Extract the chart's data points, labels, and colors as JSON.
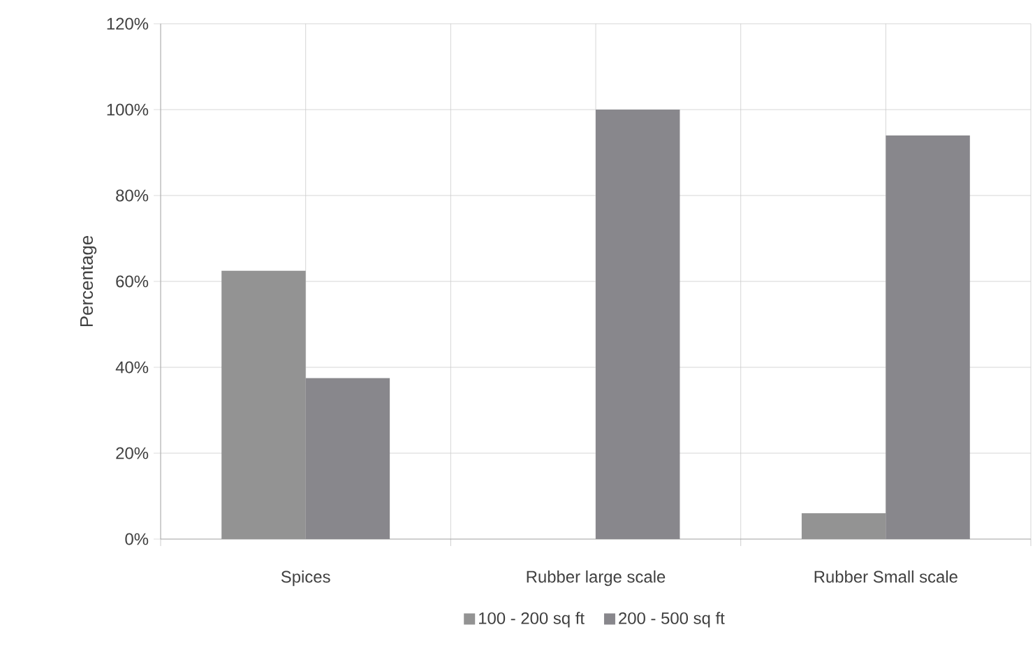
{
  "chart_data": {
    "type": "bar",
    "ylabel": "Percentage",
    "categories": [
      "Spices",
      "Rubber large scale",
      "Rubber Small scale"
    ],
    "series": [
      {
        "name": "100 - 200 sq ft",
        "color": "#939393",
        "values": [
          62.5,
          0,
          6
        ]
      },
      {
        "name": "200 - 500 sq ft",
        "color": "#88878c",
        "values": [
          37.5,
          100,
          94
        ]
      }
    ],
    "ylim": [
      0,
      120
    ],
    "yticks": [
      {
        "value": 0,
        "label": "0%"
      },
      {
        "value": 20,
        "label": "20%"
      },
      {
        "value": 40,
        "label": "40%"
      },
      {
        "value": 60,
        "label": "60%"
      },
      {
        "value": 80,
        "label": "80%"
      },
      {
        "value": 100,
        "label": "100%"
      },
      {
        "value": 120,
        "label": "120%"
      }
    ],
    "grid": true,
    "legend": "bottom"
  }
}
